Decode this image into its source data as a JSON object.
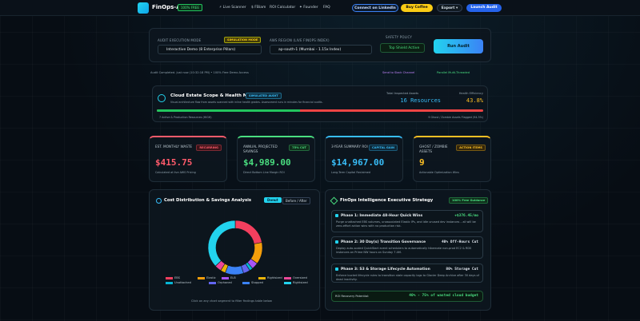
{
  "nav": {
    "brand": "FinOps-AI",
    "brand_badge": "100% FREE",
    "links": [
      "⚡ Live Scanner",
      "$ FBiam",
      "ROI Calculator",
      "✦ Founder",
      "FAQ"
    ],
    "linkedin": "Connect on LinkedIn",
    "coffee": "Buy Coffee",
    "export": "Export ▾",
    "launch": "Launch Audit"
  },
  "controls": {
    "mode_label": "AUDIT EXECUTION MODE",
    "mode_tag": "SIMULATION MODE",
    "mode_value": "Interactive Demo (8 Enterprise Pillars)",
    "region_label": "AWS REGION (LIVE FINOPS INDEX)",
    "region_value": "ap-south-1 (Mumbai - 1.15x Index)",
    "safety_label": "SAFETY POLICY",
    "safety_value": "Top Shield Active",
    "run": "Run Audit"
  },
  "status": {
    "left": "Audit Completed. Just now (10:32:18 PM) • 100% Free Demo Access",
    "send": "Send to Slack Channel",
    "parallel": "Parallel Multi-Threaded"
  },
  "health": {
    "title": "Cloud Estate Scope & Health Meter",
    "tag": "SIMULATED AUDIT",
    "desc": "Visual architecture flow from assets scanned with inline health grades. Assessment runs in minutes for financial audits.",
    "total_label": "Total Inspected Assets",
    "total_value": "16 Resources",
    "eff_label": "Health Efficiency",
    "eff_value": "43.8%",
    "efficiency": 0.438,
    "left_note": "7 Active & Production Resources (HIGH)",
    "right_note": "9 Ghost / Zombie Assets Flagged (94.3%)"
  },
  "kpis": [
    {
      "label": "EST. MONTHLY WASTE",
      "tag": "RECURRING",
      "value": "$415.75",
      "note": "Calculated at live AWS Pricing",
      "color": "#ff5b6b",
      "tagbg": "#3a1318"
    },
    {
      "label": "ANNUAL PROJECTED SAVINGS",
      "tag": "75% CUT",
      "value": "$4,989.00",
      "note": "Direct Bottom Line Margin ROI",
      "color": "#4ade80",
      "tagbg": "#0f2e1b"
    },
    {
      "label": "3-YEAR SUMMARY ROI",
      "tag": "CAPITAL GAIN",
      "value": "$14,967.00",
      "note": "Long-Term Capital Reclaimed",
      "color": "#38bdf8",
      "tagbg": "#0d2838"
    },
    {
      "label": "GHOST / ZOMBIE ASSETS",
      "tag": "ACTION ITEMS",
      "value": "9",
      "note": "Actionable Optimization Wins",
      "color": "#fbbf24",
      "tagbg": "#33260b"
    }
  ],
  "distribution": {
    "title": "Cost Distribution & Savings Analysis",
    "tab_active": "Donut",
    "tab_other": "Before / After",
    "hint": "Click on any chart segment to filter findings table below",
    "legend": [
      "EBS",
      "Elastic",
      "ELB",
      "Unattached",
      "Orphaned",
      "Stopped",
      "Rightsized",
      "Oversized",
      "Rightsized"
    ],
    "legend_colors": [
      "#f43f5e",
      "#f59e0b",
      "#a855f7",
      "#06b6d4",
      "#6366f1",
      "#3b82f6",
      "#eab308",
      "#ec4899",
      "#22d3ee"
    ]
  },
  "chart_data": {
    "type": "pie",
    "labels": [
      "EBS",
      "Elastic",
      "ELB",
      "Unattached",
      "Orphaned",
      "Stopped",
      "Rightsized",
      "Oversized",
      "Rightsized"
    ],
    "values": [
      22,
      13,
      4,
      2,
      4,
      11,
      3,
      4,
      37
    ],
    "colors": [
      "#f43f5e",
      "#f59e0b",
      "#a855f7",
      "#06b6d4",
      "#6366f1",
      "#3b82f6",
      "#eab308",
      "#ec4899",
      "#22d3ee"
    ]
  },
  "strategy": {
    "title": "FinOps Intelligence Executive Strategy",
    "tag": "100% Free Guidance",
    "phases": [
      {
        "title": "Phase 1: Immediate 48-Hour Quick Wins",
        "value": "+$376.45/mo",
        "desc": "Purge unattached EBS volumes, unassociated Elastic IPs, and idle unused dev instances – all will be zero-effort action wins with no production risk.",
        "color": "#4ade80"
      },
      {
        "title": "Phase 2: 30 Day(s) Transition Governance",
        "value": "40% Off-Hours Cut",
        "desc": "Deploy auto-scaled QuickStart event schedulers to automatically hibernate non-prod EC2 & RDS instances on Prime NW hours on Sunday 7 AM.",
        "color": "#e2e8f0"
      },
      {
        "title": "Phase 3: S3 & Storage Lifecycle Automation",
        "value": "80% Storage Cut",
        "desc": "Enforce bucket lifecycle rules to transition stale capacity logs to Glacier Deep Archive after 30 days of dead inactivity.",
        "color": "#e2e8f0"
      }
    ],
    "roi_label": "ROI Recovery Potential:",
    "roi_value": "40% - 75% of wasted cloud budget"
  }
}
